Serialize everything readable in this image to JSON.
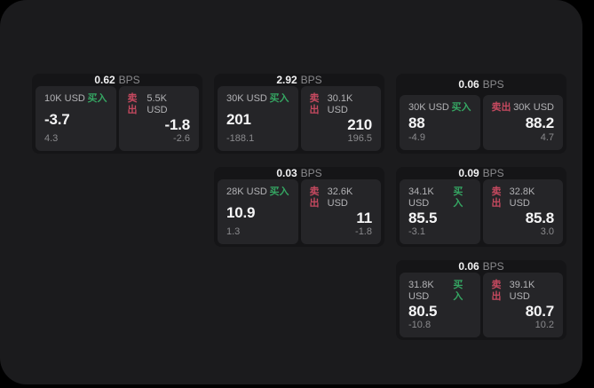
{
  "colors": {
    "background": "#000000",
    "surface": "#1b1b1d",
    "card": "#151517",
    "tile": "#252528",
    "buy_green": "#35a562",
    "sell_red": "#c5495f"
  },
  "cards": [
    {
      "bps": "0.62",
      "unit": "BPS",
      "buy": {
        "amount": "10K USD",
        "tag": "买入",
        "value": "-3.7",
        "sub": "4.3"
      },
      "sell": {
        "tag": "卖出",
        "amount": "5.5K USD",
        "value": "-1.8",
        "sub": "-2.6"
      }
    },
    {
      "bps": "2.92",
      "unit": "BPS",
      "buy": {
        "amount": "30K USD",
        "tag": "买入",
        "value": "201",
        "sub": "-188.1"
      },
      "sell": {
        "tag": "卖出",
        "amount": "30.1K USD",
        "value": "210",
        "sub": "196.5"
      }
    },
    {
      "bps": "0.06",
      "unit": "BPS",
      "buy": {
        "amount": "30K USD",
        "tag": "买入",
        "value": "88",
        "sub": "-4.9"
      },
      "sell": {
        "tag": "卖出",
        "amount": "30K USD",
        "value": "88.2",
        "sub": "4.7"
      }
    },
    {
      "bps": "0.03",
      "unit": "BPS",
      "buy": {
        "amount": "28K USD",
        "tag": "买入",
        "value": "10.9",
        "sub": "1.3"
      },
      "sell": {
        "tag": "卖出",
        "amount": "32.6K USD",
        "value": "11",
        "sub": "-1.8"
      }
    },
    {
      "bps": "0.09",
      "unit": "BPS",
      "buy": {
        "amount": "34.1K USD",
        "tag": "买入",
        "value": "85.5",
        "sub": "-3.1"
      },
      "sell": {
        "tag": "卖出",
        "amount": "32.8K USD",
        "value": "85.8",
        "sub": "3.0"
      }
    },
    {
      "bps": "0.06",
      "unit": "BPS",
      "buy": {
        "amount": "31.8K USD",
        "tag": "买入",
        "value": "80.5",
        "sub": "-10.8"
      },
      "sell": {
        "tag": "卖出",
        "amount": "39.1K USD",
        "value": "80.7",
        "sub": "10.2"
      }
    }
  ]
}
